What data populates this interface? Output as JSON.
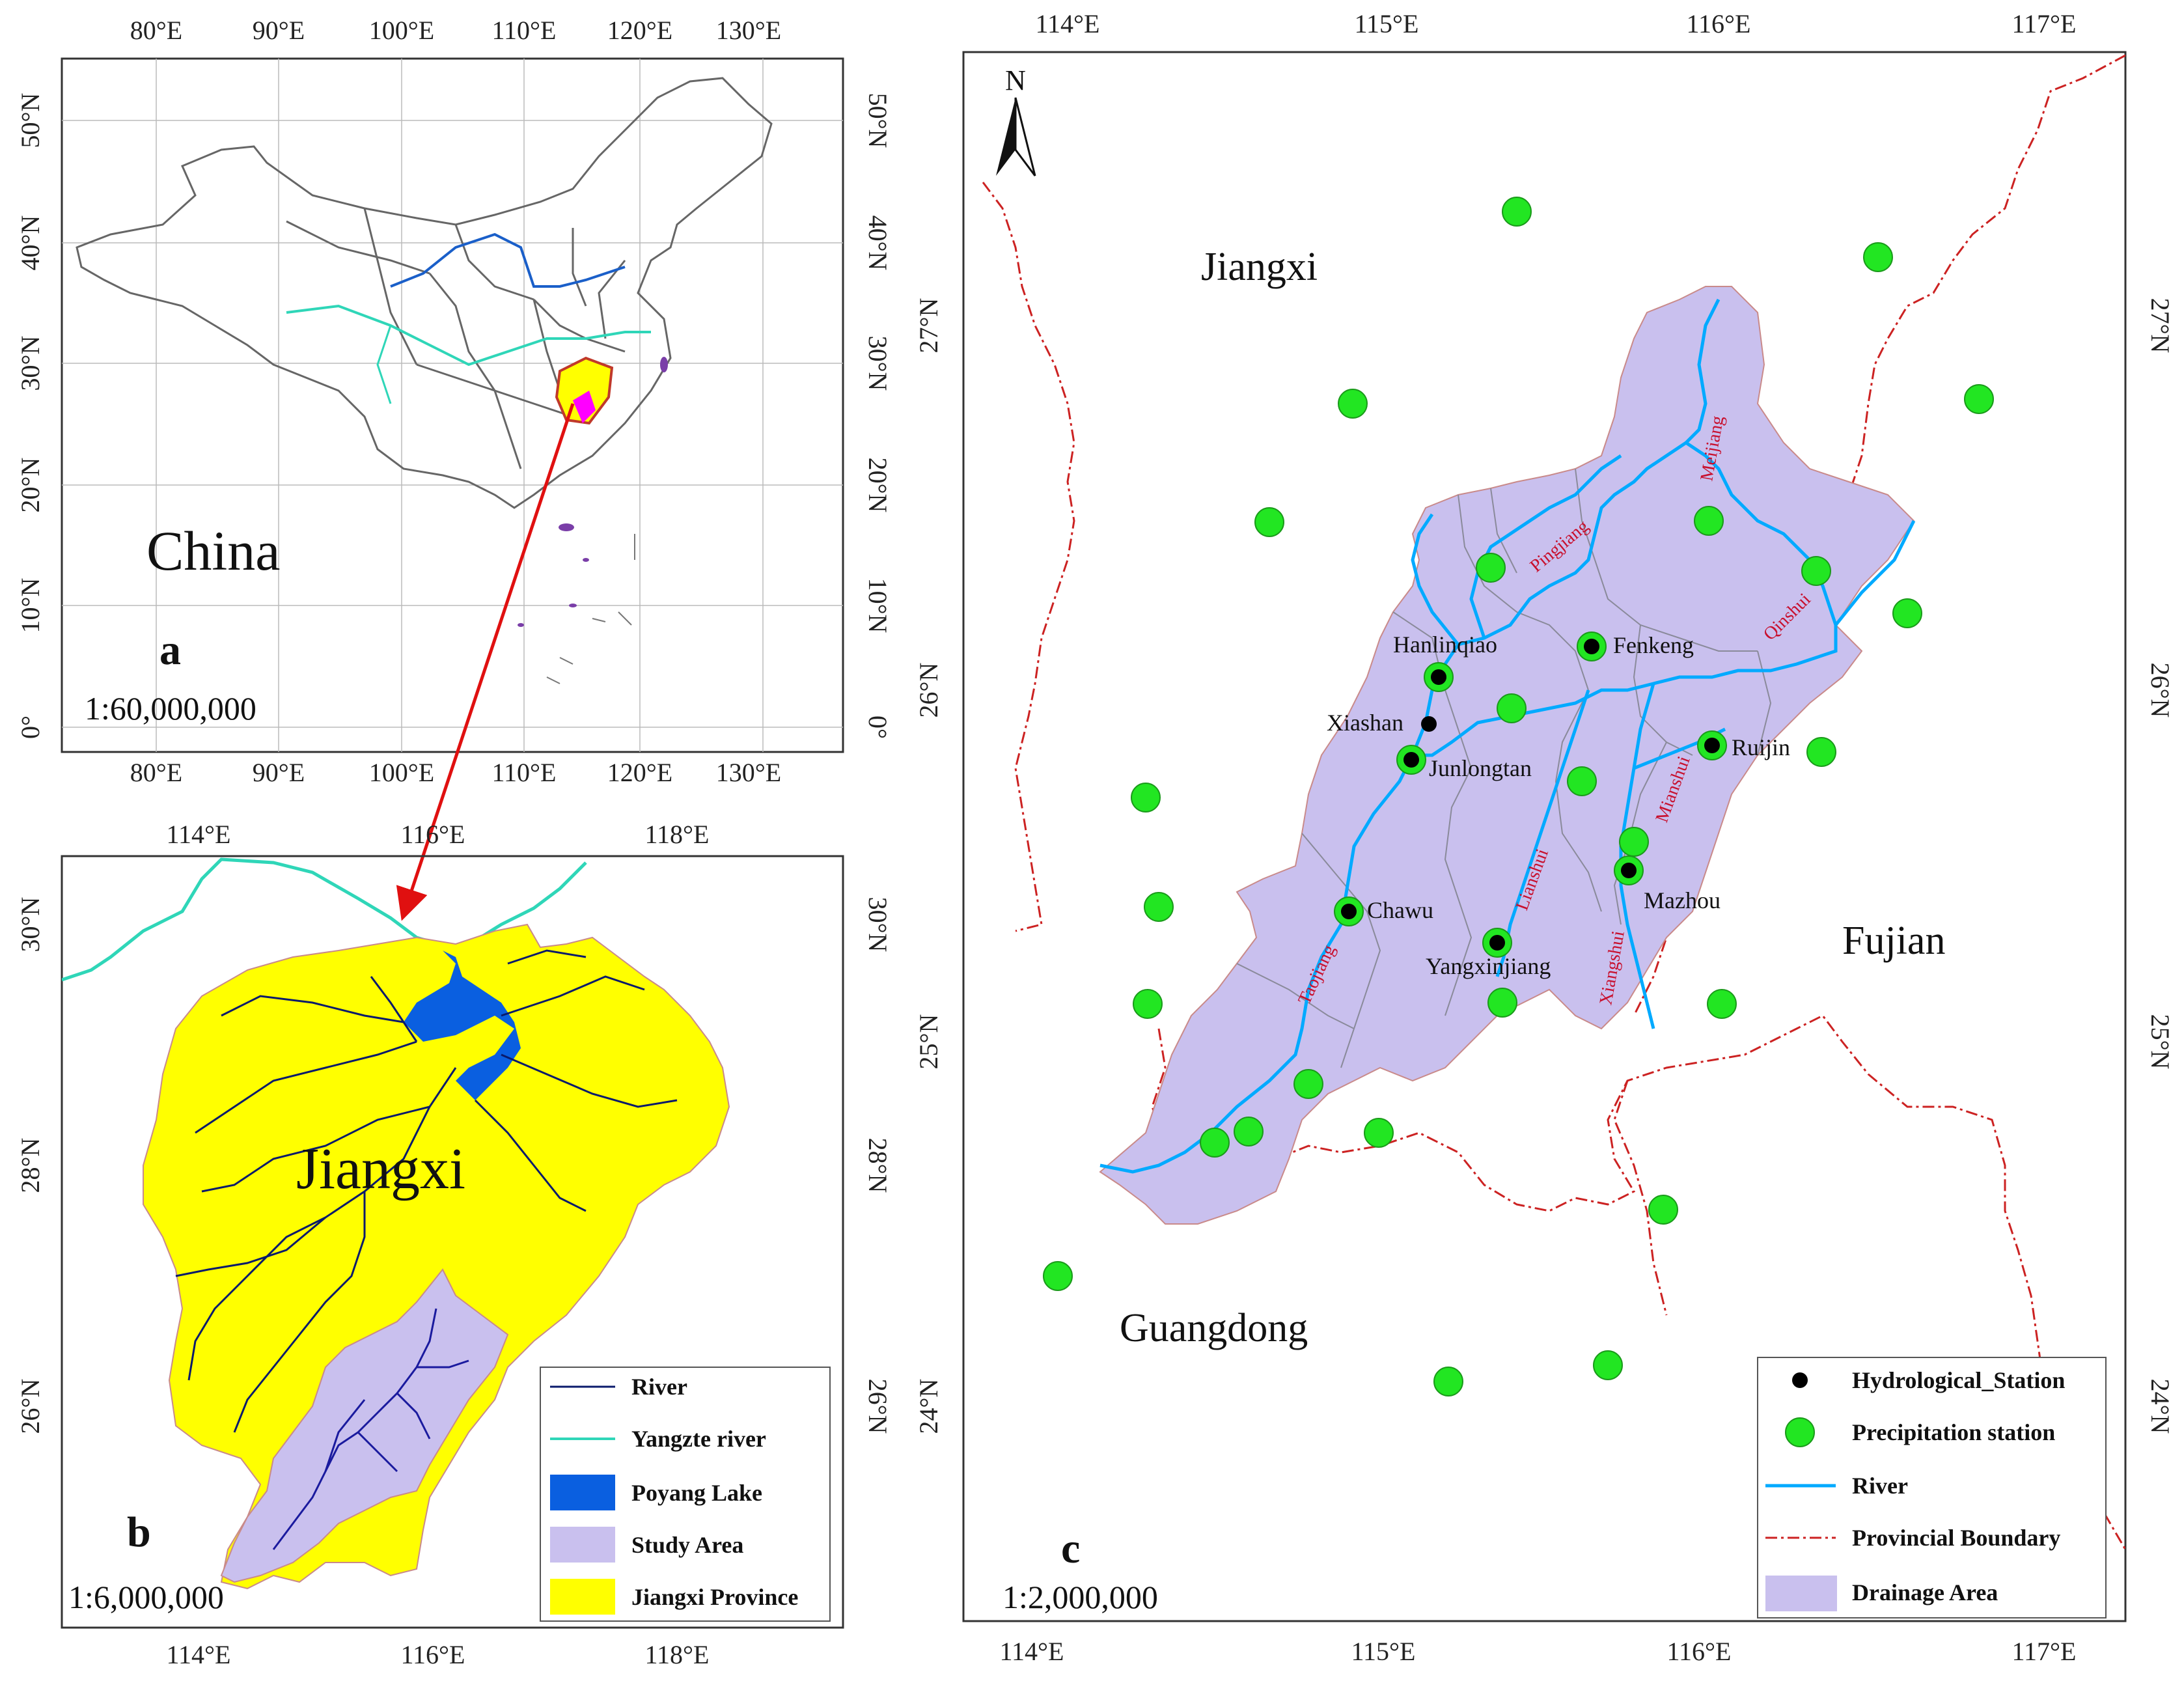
{
  "panel_a": {
    "label": "a",
    "country": "China",
    "scale": "1:60,000,000",
    "lon_ticks": [
      "80°E",
      "90°E",
      "100°E",
      "110°E",
      "120°E",
      "130°E"
    ],
    "lat_ticks": [
      "50°N",
      "40°N",
      "30°N",
      "20°N",
      "10°N",
      "0°"
    ]
  },
  "panel_b": {
    "label": "b",
    "province": "Jiangxi",
    "scale": "1:6,000,000",
    "lon_ticks": [
      "114°E",
      "116°E",
      "118°E"
    ],
    "lat_ticks": [
      "30°N",
      "28°N",
      "26°N"
    ],
    "legend": {
      "river": "River",
      "yangtze": "Yangzte river",
      "lake": "Poyang Lake",
      "study": "Study Area",
      "province": "Jiangxi Province"
    }
  },
  "panel_c": {
    "label": "c",
    "north": "N",
    "scale": "1:2,000,000",
    "lon_ticks": [
      "114°E",
      "115°E",
      "116°E",
      "117°E"
    ],
    "lat_ticks": [
      "27°N",
      "26°N",
      "25°N",
      "24°N"
    ],
    "regions": {
      "jiangxi": "Jiangxi",
      "fujian": "Fujian",
      "guangdong": "Guangdong"
    },
    "stations": {
      "hanlinqiao": "Hanlinqiao",
      "fenkeng": "Fenkeng",
      "xiashan": "Xiashan",
      "junlongtan": "Junlongtan",
      "ruijin": "Ruijin",
      "chawu": "Chawu",
      "mazhou": "Mazhou",
      "yangxinjiang": "Yangxinjiang"
    },
    "rivers": {
      "pingjiang": "Pingjiang",
      "meijiang": "Meijiang",
      "qinshui": "Qinshui",
      "mianshui": "Mianshui",
      "lianshui": "Lianshui",
      "xiangshui": "Xiangshui",
      "taojiang": "Taojiang"
    },
    "legend": {
      "hydro": "Hydrological_Station",
      "precip": "Precipitation station",
      "river": "River",
      "boundary": "Provincial Boundary",
      "drainage": "Drainage Area"
    }
  },
  "colors": {
    "river_light": "#00aaff",
    "river_dark": "#0a1a6b",
    "yangtze": "#2fd6b8",
    "lake": "#0a5fe0",
    "study": "#c9c0ee",
    "province_fill": "#ffff00",
    "precip": "#22e622",
    "boundary": "#cc2222",
    "arrow": "#e01010"
  }
}
